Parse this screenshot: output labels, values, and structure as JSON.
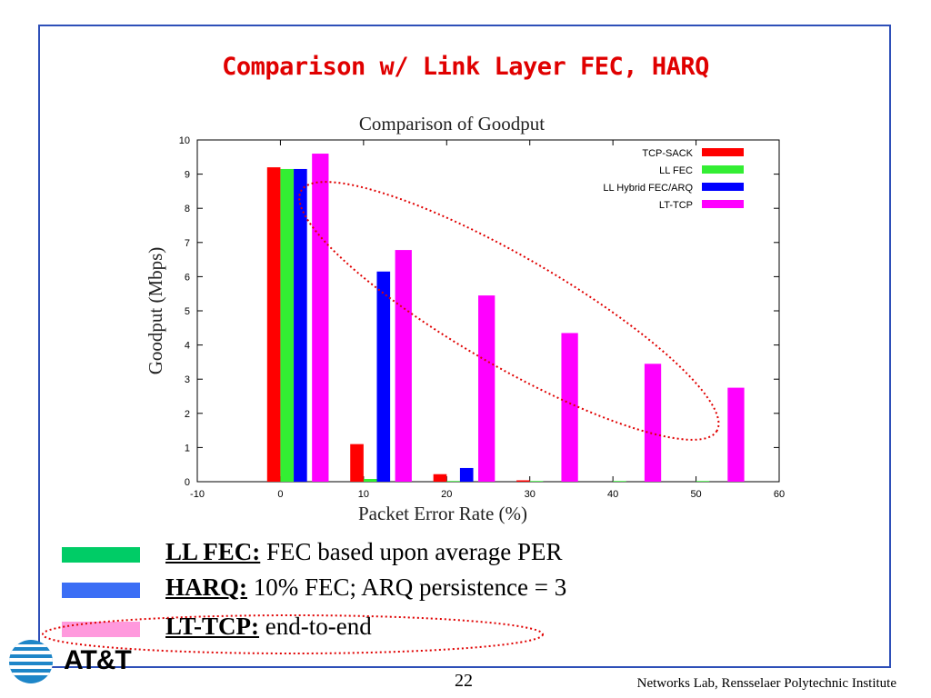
{
  "slide": {
    "title": "Comparison w/ Link Layer FEC, HARQ",
    "page_number": "22",
    "footer": "Networks Lab, Rensselaer Polytechnic Institute",
    "logo_text": "AT&T"
  },
  "legend": [
    {
      "term": "LL FEC:",
      "desc": " FEC based upon average PER",
      "color": "#00cc66"
    },
    {
      "term": "HARQ:",
      "desc": " 10% FEC;  ARQ persistence = 3",
      "color": "#3b6ef5"
    },
    {
      "term": "LT-TCP:",
      "desc": " end-to-end",
      "color": "#ff99dd"
    }
  ],
  "chart_data": {
    "type": "bar",
    "title": "Comparison of Goodput",
    "xlabel": "Packet Error Rate (%)",
    "ylabel": "Goodput (Mbps)",
    "xlim": [
      -10,
      60
    ],
    "ylim": [
      0,
      10
    ],
    "xticks": [
      "-10",
      "0",
      "10",
      "20",
      "30",
      "40",
      "50",
      "60"
    ],
    "yticks": [
      "0",
      "1",
      "2",
      "3",
      "4",
      "5",
      "6",
      "7",
      "8",
      "9",
      "10"
    ],
    "legend_position": "top-right",
    "categories": [
      0,
      10,
      20,
      30,
      40,
      50
    ],
    "series": [
      {
        "name": "TCP-SACK",
        "color": "#ff0000",
        "values": [
          9.2,
          1.1,
          0.22,
          0.04,
          0,
          0
        ]
      },
      {
        "name": "LL FEC",
        "color": "#33ee33",
        "values": [
          9.15,
          0.08,
          0.02,
          0.02,
          0.02,
          0.02
        ]
      },
      {
        "name": "LL Hybrid FEC/ARQ",
        "color": "#0000ff",
        "values": [
          9.15,
          6.15,
          0.4,
          0,
          0,
          0
        ]
      },
      {
        "name": "LT-TCP",
        "color": "#ff00ff",
        "values": [
          9.6,
          6.78,
          5.45,
          4.35,
          3.45,
          2.75
        ]
      }
    ]
  }
}
